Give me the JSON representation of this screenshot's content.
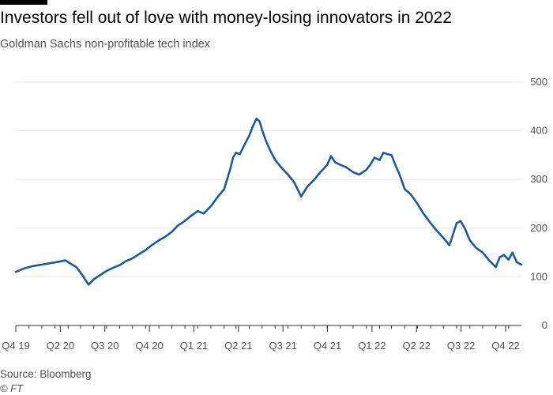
{
  "title": "Investors fell out of love with money-losing innovators in 2022",
  "subtitle": "Goldman Sachs non-profitable tech index",
  "source": "Source: Bloomberg",
  "credit": "© FT",
  "colors": {
    "line": "#1a5aa0",
    "grid": "#e8e6e3",
    "axis": "#33302e",
    "text": "#55504c"
  },
  "chart_data": {
    "type": "line",
    "title": "Investors fell out of love with money-losing innovators in 2022",
    "subtitle": "Goldman Sachs non-profitable tech index",
    "xlabel": "",
    "ylabel": "",
    "ylim": [
      0,
      500
    ],
    "yticks": [
      0,
      100,
      200,
      300,
      400,
      500
    ],
    "y_axis_side": "right",
    "grid": true,
    "xticks": [
      "Q4 19",
      "Q2 20",
      "Q3 20",
      "Q4 20",
      "Q1 21",
      "Q2 21",
      "Q3 21",
      "Q4 21",
      "Q1 22",
      "Q2 22",
      "Q3 22",
      "Q4 22"
    ],
    "x_range": [
      "2019-10-01",
      "2022-12-31"
    ],
    "series": [
      {
        "name": "",
        "points": [
          [
            "2019-10-01",
            110
          ],
          [
            "2019-10-20",
            117
          ],
          [
            "2019-11-10",
            122
          ],
          [
            "2019-12-01",
            125
          ],
          [
            "2019-12-20",
            128
          ],
          [
            "2020-01-10",
            131
          ],
          [
            "2020-01-25",
            134
          ],
          [
            "2020-02-05",
            128
          ],
          [
            "2020-02-20",
            120
          ],
          [
            "2020-03-05",
            104
          ],
          [
            "2020-03-15",
            90
          ],
          [
            "2020-03-20",
            84
          ],
          [
            "2020-04-01",
            95
          ],
          [
            "2020-04-15",
            103
          ],
          [
            "2020-05-01",
            112
          ],
          [
            "2020-05-15",
            118
          ],
          [
            "2020-06-01",
            124
          ],
          [
            "2020-06-15",
            132
          ],
          [
            "2020-07-01",
            138
          ],
          [
            "2020-07-15",
            146
          ],
          [
            "2020-08-01",
            155
          ],
          [
            "2020-08-15",
            165
          ],
          [
            "2020-09-01",
            175
          ],
          [
            "2020-09-15",
            182
          ],
          [
            "2020-10-01",
            192
          ],
          [
            "2020-10-15",
            205
          ],
          [
            "2020-11-01",
            215
          ],
          [
            "2020-11-15",
            225
          ],
          [
            "2020-12-01",
            235
          ],
          [
            "2020-12-15",
            230
          ],
          [
            "2021-01-01",
            245
          ],
          [
            "2021-01-15",
            262
          ],
          [
            "2021-02-01",
            280
          ],
          [
            "2021-02-08",
            300
          ],
          [
            "2021-02-15",
            320
          ],
          [
            "2021-02-22",
            345
          ],
          [
            "2021-03-01",
            355
          ],
          [
            "2021-03-10",
            352
          ],
          [
            "2021-03-20",
            370
          ],
          [
            "2021-04-01",
            390
          ],
          [
            "2021-04-10",
            410
          ],
          [
            "2021-04-18",
            425
          ],
          [
            "2021-04-25",
            420
          ],
          [
            "2021-05-02",
            400
          ],
          [
            "2021-05-10",
            380
          ],
          [
            "2021-05-20",
            360
          ],
          [
            "2021-06-01",
            340
          ],
          [
            "2021-06-15",
            325
          ],
          [
            "2021-07-01",
            310
          ],
          [
            "2021-07-15",
            295
          ],
          [
            "2021-08-01",
            265
          ],
          [
            "2021-08-15",
            285
          ],
          [
            "2021-09-01",
            300
          ],
          [
            "2021-09-15",
            315
          ],
          [
            "2021-10-01",
            330
          ],
          [
            "2021-10-10",
            348
          ],
          [
            "2021-10-20",
            335
          ],
          [
            "2021-11-01",
            330
          ],
          [
            "2021-11-15",
            325
          ],
          [
            "2021-12-01",
            315
          ],
          [
            "2021-12-15",
            310
          ],
          [
            "2022-01-01",
            320
          ],
          [
            "2022-01-10",
            330
          ],
          [
            "2022-01-20",
            345
          ],
          [
            "2022-02-01",
            340
          ],
          [
            "2022-02-10",
            355
          ],
          [
            "2022-02-20",
            352
          ],
          [
            "2022-03-01",
            350
          ],
          [
            "2022-03-10",
            330
          ],
          [
            "2022-03-20",
            310
          ],
          [
            "2022-04-01",
            280
          ],
          [
            "2022-04-15",
            270
          ],
          [
            "2022-05-01",
            250
          ],
          [
            "2022-05-15",
            230
          ],
          [
            "2022-06-01",
            210
          ],
          [
            "2022-06-15",
            195
          ],
          [
            "2022-07-01",
            180
          ],
          [
            "2022-07-15",
            165
          ],
          [
            "2022-08-01",
            210
          ],
          [
            "2022-08-10",
            215
          ],
          [
            "2022-08-20",
            200
          ],
          [
            "2022-09-01",
            175
          ],
          [
            "2022-09-15",
            160
          ],
          [
            "2022-10-01",
            150
          ],
          [
            "2022-10-15",
            135
          ],
          [
            "2022-11-01",
            120
          ],
          [
            "2022-11-10",
            140
          ],
          [
            "2022-11-20",
            145
          ],
          [
            "2022-12-01",
            135
          ],
          [
            "2022-12-10",
            150
          ],
          [
            "2022-12-20",
            130
          ],
          [
            "2022-12-31",
            125
          ]
        ]
      }
    ]
  }
}
